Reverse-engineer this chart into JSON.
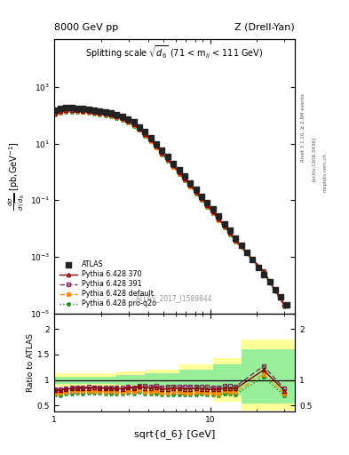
{
  "title_left": "8000 GeV pp",
  "title_right": "Z (Drell-Yan)",
  "plot_title": "Splitting scale $\\sqrt{d_6}$ (71 < m$_{ll}$ < 111 GeV)",
  "ylabel_main": "d$\\sigma$\n/dsqrt(d_6) [pb,GeV$^{-1}$]",
  "ylabel_ratio": "Ratio to ATLAS",
  "xlabel": "sqrt{d_6} [GeV]",
  "watermark": "ATLAS_2017_I1589844",
  "right_label1": "Rivet 3.1.10, ≥ 2.8M events",
  "right_label2": "[arXiv:1306.3436]",
  "right_label3": "mcplots.cern.ch",
  "atlas_x": [
    1.02,
    1.1,
    1.19,
    1.3,
    1.41,
    1.53,
    1.66,
    1.81,
    1.96,
    2.13,
    2.32,
    2.52,
    2.74,
    2.98,
    3.24,
    3.52,
    3.83,
    4.16,
    4.52,
    4.92,
    5.35,
    5.81,
    6.32,
    6.87,
    7.47,
    8.12,
    8.83,
    9.59,
    10.43,
    11.34,
    12.33,
    13.41,
    14.58,
    15.85,
    17.23,
    18.74,
    20.37,
    22.14,
    24.07,
    26.17,
    28.45,
    30.92
  ],
  "atlas_y": [
    150,
    175,
    180,
    180,
    175,
    170,
    162,
    152,
    143,
    133,
    122,
    108,
    92,
    74,
    57,
    39,
    26,
    16,
    9.5,
    5.8,
    3.4,
    2.0,
    1.18,
    0.7,
    0.41,
    0.24,
    0.14,
    0.082,
    0.048,
    0.027,
    0.015,
    0.0085,
    0.0047,
    0.0026,
    0.00142,
    0.00079,
    0.00043,
    0.00024,
    0.00013,
    7.1e-05,
    3.8e-05,
    2e-05
  ],
  "py370_x": [
    1.02,
    1.1,
    1.19,
    1.3,
    1.41,
    1.53,
    1.66,
    1.81,
    1.96,
    2.13,
    2.32,
    2.52,
    2.74,
    2.98,
    3.24,
    3.52,
    3.83,
    4.16,
    4.52,
    4.92,
    5.35,
    5.81,
    6.32,
    6.87,
    7.47,
    8.12,
    8.83,
    9.59,
    10.43,
    11.34,
    12.33,
    13.41,
    14.58,
    22.0,
    30.0
  ],
  "py370_y": [
    120,
    140,
    148,
    150,
    148,
    143,
    137,
    129,
    121,
    111,
    102,
    90,
    76,
    63,
    48,
    34,
    22,
    13.5,
    8.1,
    4.8,
    2.8,
    1.67,
    0.98,
    0.58,
    0.34,
    0.2,
    0.116,
    0.067,
    0.039,
    0.022,
    0.0126,
    0.0071,
    0.0039,
    0.0003,
    2e-05
  ],
  "py391_x": [
    1.02,
    1.1,
    1.19,
    1.3,
    1.41,
    1.53,
    1.66,
    1.81,
    1.96,
    2.13,
    2.32,
    2.52,
    2.74,
    2.98,
    3.24,
    3.52,
    3.83,
    4.16,
    4.52,
    4.92,
    5.35,
    5.81,
    6.32,
    6.87,
    7.47,
    8.12,
    8.83,
    9.59,
    10.43,
    11.34,
    12.33,
    13.41,
    14.58,
    22.0,
    30.0
  ],
  "py391_y": [
    122,
    143,
    151,
    153,
    151,
    146,
    140,
    131,
    123,
    113,
    104,
    92,
    78,
    64,
    49,
    35,
    23,
    14,
    8.5,
    5.0,
    2.95,
    1.75,
    1.03,
    0.61,
    0.36,
    0.21,
    0.122,
    0.071,
    0.041,
    0.023,
    0.0133,
    0.0075,
    0.0041,
    0.00032,
    2.1e-05
  ],
  "pydef_x": [
    1.02,
    1.1,
    1.19,
    1.3,
    1.41,
    1.53,
    1.66,
    1.81,
    1.96,
    2.13,
    2.32,
    2.52,
    2.74,
    2.98,
    3.24,
    3.52,
    3.83,
    4.16,
    4.52,
    4.92,
    5.35,
    5.81,
    6.32,
    6.87,
    7.47,
    8.12,
    8.83,
    9.59,
    10.43,
    11.34,
    12.33,
    13.41,
    14.58,
    22.0,
    30.0
  ],
  "pydef_y": [
    112,
    130,
    138,
    140,
    138,
    133,
    128,
    120,
    112,
    103,
    95,
    83,
    71,
    58,
    44,
    31,
    20,
    12.3,
    7.4,
    4.4,
    2.58,
    1.53,
    0.9,
    0.53,
    0.31,
    0.183,
    0.107,
    0.062,
    0.036,
    0.02,
    0.0117,
    0.0066,
    0.0036,
    0.00028,
    1.85e-05
  ],
  "pyproq2o_x": [
    1.02,
    1.1,
    1.19,
    1.3,
    1.41,
    1.53,
    1.66,
    1.81,
    1.96,
    2.13,
    2.32,
    2.52,
    2.74,
    2.98,
    3.24,
    3.52,
    3.83,
    4.16,
    4.52,
    4.92,
    5.35,
    5.81,
    6.32,
    6.87,
    7.47,
    8.12,
    8.83,
    9.59,
    10.43,
    11.34,
    12.33,
    13.41,
    14.58,
    22.0,
    30.0
  ],
  "pyproq2o_y": [
    107,
    123,
    131,
    133,
    131,
    126,
    121,
    114,
    107,
    98,
    90,
    79,
    67,
    55,
    42,
    30,
    19,
    11.7,
    7.0,
    4.2,
    2.45,
    1.45,
    0.855,
    0.505,
    0.297,
    0.174,
    0.102,
    0.059,
    0.034,
    0.019,
    0.0111,
    0.0063,
    0.0034,
    0.000265,
    1.75e-05
  ],
  "ratio_band_x_edges": [
    1.0,
    1.55,
    2.52,
    3.83,
    6.32,
    10.43,
    15.85,
    100.0
  ],
  "ratio_band_green_lo": [
    0.93,
    0.93,
    0.9,
    0.87,
    0.8,
    0.7,
    0.55,
    0.55
  ],
  "ratio_band_green_hi": [
    1.07,
    1.07,
    1.1,
    1.13,
    1.2,
    1.3,
    1.6,
    1.6
  ],
  "ratio_band_yellow_lo": [
    0.87,
    0.87,
    0.83,
    0.79,
    0.7,
    0.57,
    0.4,
    0.4
  ],
  "ratio_band_yellow_hi": [
    1.13,
    1.13,
    1.17,
    1.21,
    1.3,
    1.43,
    1.8,
    1.8
  ],
  "color_atlas": "#222222",
  "color_py370": "#8B0000",
  "color_py391": "#7B3060",
  "color_pydef": "#FF8C00",
  "color_pyproq2o": "#228B22",
  "xlim": [
    1.0,
    35.0
  ],
  "ylim_main": [
    1e-05,
    50000.0
  ],
  "ylim_ratio": [
    0.38,
    2.3
  ]
}
